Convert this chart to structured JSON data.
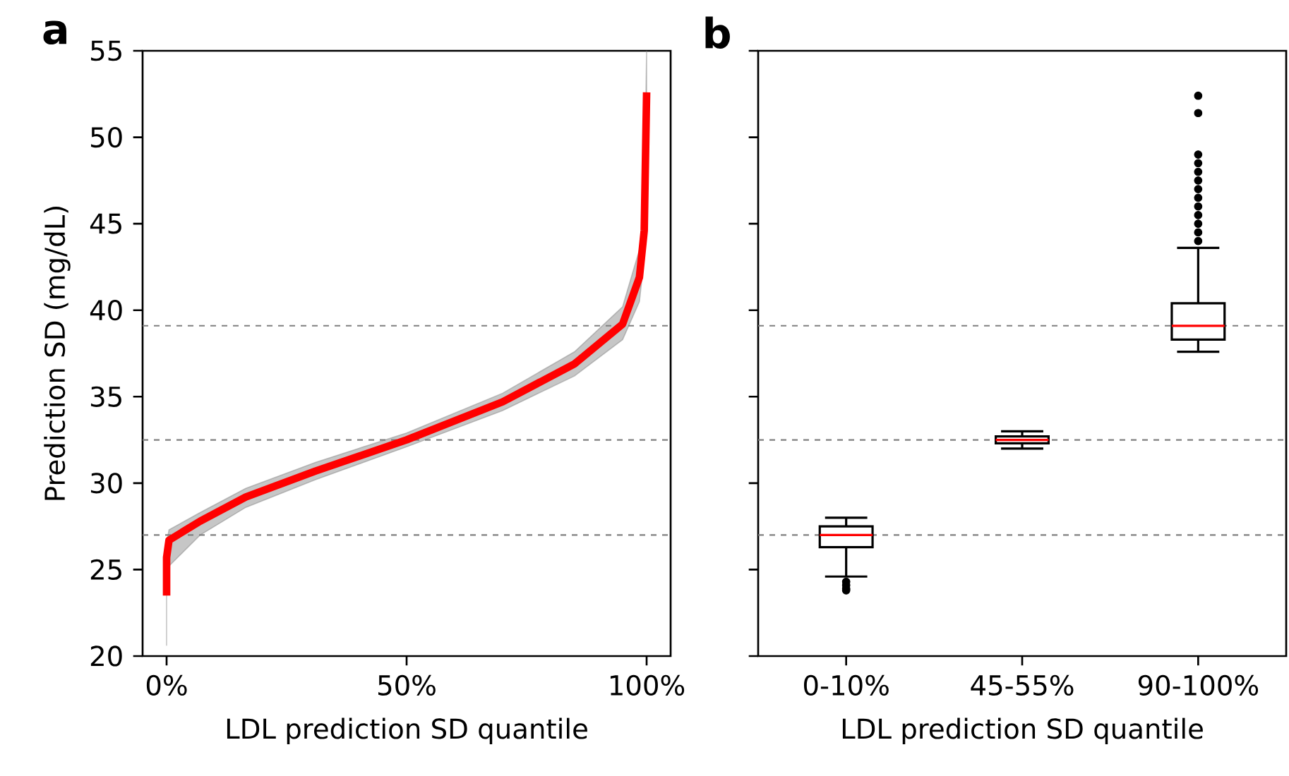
{
  "chart_data": [
    {
      "type": "line",
      "title": "a",
      "xlabel": "LDL prediction SD quantile",
      "ylabel": "Prediction SD (mg/dL)",
      "xlim": [
        -0.05,
        1.05
      ],
      "ylim": [
        20,
        55
      ],
      "xticks": [
        {
          "value": 0,
          "label": "0%"
        },
        {
          "value": 0.5,
          "label": "50%"
        },
        {
          "value": 1,
          "label": "100%"
        }
      ],
      "yticks": [
        20,
        25,
        30,
        35,
        40,
        45,
        50,
        55
      ],
      "series": [
        {
          "color": "#ff0000",
          "x": [
            0,
            0,
            0.005,
            0.07,
            0.165,
            0.31,
            0.5,
            0.7,
            0.85,
            0.95,
            0.985,
            0.995,
            1
          ],
          "values": [
            23.5,
            25.7,
            26.7,
            27.8,
            29.2,
            30.7,
            32.5,
            34.7,
            36.9,
            39.2,
            41.9,
            44.6,
            52.6
          ],
          "lower": [
            20.6,
            23.5,
            25.2,
            27.0,
            28.6,
            30.2,
            32.1,
            34.2,
            36.2,
            38.3,
            40.5,
            43.0,
            52.6
          ],
          "upper": [
            23.5,
            26.5,
            27.3,
            28.3,
            29.7,
            31.2,
            32.9,
            35.2,
            37.6,
            40.2,
            43.5,
            46.0,
            55.0
          ]
        }
      ],
      "ref_lines": [
        {
          "axis": "y",
          "value": 39.1,
          "color": "#808080",
          "line_style": "dashed"
        },
        {
          "axis": "y",
          "value": 32.5,
          "color": "#808080",
          "line_style": "dashed"
        },
        {
          "axis": "y",
          "value": 27.0,
          "color": "#808080",
          "line_style": "dashed"
        }
      ]
    },
    {
      "type": "box",
      "title": "b",
      "xlabel": "LDL prediction SD quantile",
      "categories": [
        "0-10%",
        "45-55%",
        "90-100%"
      ],
      "ylim": [
        20,
        55
      ],
      "yticks": [
        20,
        25,
        30,
        35,
        40,
        45,
        50,
        55
      ],
      "tick_labels": "x",
      "boxes": [
        {
          "low": 24.6,
          "q1": 26.3,
          "median": 27.0,
          "q3": 27.5,
          "high": 28.0,
          "outliers": [
            24.3,
            24.1,
            23.9,
            23.8
          ]
        },
        {
          "low": 32.0,
          "q1": 32.3,
          "median": 32.5,
          "q3": 32.7,
          "high": 33.0
        },
        {
          "low": 37.6,
          "q1": 38.3,
          "median": 39.1,
          "q3": 40.4,
          "high": 43.6,
          "outliers": [
            44.0,
            44.5,
            45.0,
            45.5,
            46.0,
            46.5,
            47.0,
            47.5,
            48.0,
            48.5,
            49.0,
            51.4,
            52.4
          ]
        }
      ],
      "ref_lines": [
        {
          "axis": "y",
          "value": 39.1,
          "color": "#808080",
          "line_style": "dashed"
        },
        {
          "axis": "y",
          "value": 32.5,
          "color": "#808080",
          "line_style": "dashed"
        },
        {
          "axis": "y",
          "value": 27.0,
          "color": "#808080",
          "line_style": "dashed"
        }
      ]
    }
  ]
}
